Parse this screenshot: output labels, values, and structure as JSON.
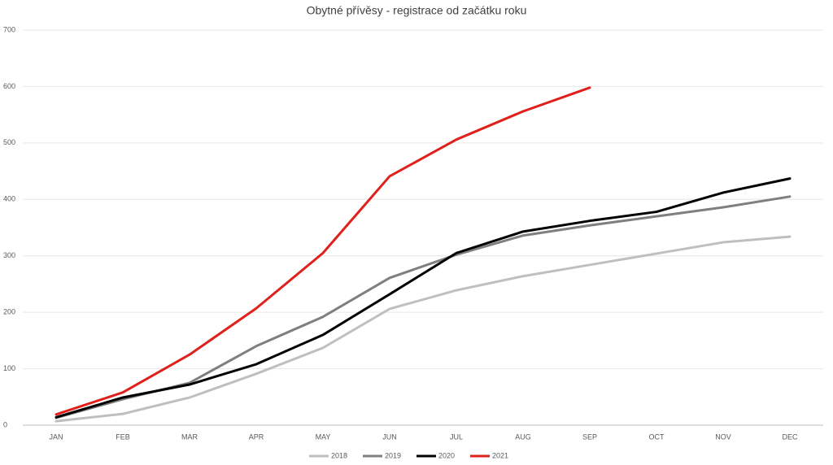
{
  "chart_data": {
    "type": "line",
    "title": "Obytné přívěsy - registrace od začátku roku",
    "categories": [
      "JAN",
      "FEB",
      "MAR",
      "APR",
      "MAY",
      "JUN",
      "JUL",
      "AUG",
      "SEP",
      "OCT",
      "NOV",
      "DEC"
    ],
    "series": [
      {
        "name": "2018",
        "color": "#bfbfbf",
        "values": [
          7,
          20,
          49,
          91,
          137,
          206,
          239,
          264,
          284,
          304,
          324,
          334
        ]
      },
      {
        "name": "2019",
        "color": "#7f7f7f",
        "values": [
          13,
          46,
          75,
          140,
          192,
          261,
          302,
          336,
          354,
          370,
          386,
          405
        ]
      },
      {
        "name": "2020",
        "color": "#000000",
        "values": [
          14,
          49,
          72,
          108,
          160,
          232,
          305,
          343,
          362,
          378,
          412,
          437
        ]
      },
      {
        "name": "2021",
        "color": "#e0201b",
        "values": [
          19,
          58,
          125,
          207,
          305,
          441,
          506,
          556,
          598,
          null,
          null,
          null
        ]
      }
    ],
    "ylim": [
      0,
      700
    ],
    "yticks": [
      0,
      100,
      200,
      300,
      400,
      500,
      600,
      700
    ],
    "grid": true,
    "legend": "bottom"
  }
}
